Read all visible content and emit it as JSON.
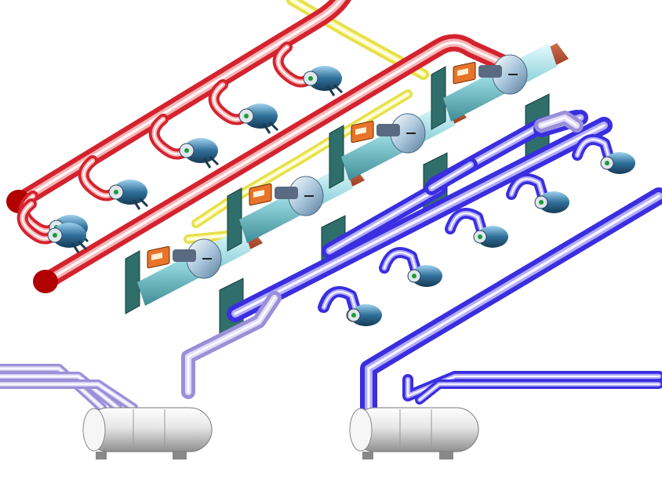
{
  "diagram": {
    "kind": "piping-scada-schematic",
    "colors": {
      "hot_supply": "#d4232e",
      "hot_light": "#ffd0d0",
      "cold_supply": "#3a2ee0",
      "cold_light": "#c9c4ff",
      "return_lavender": "#9a90d8",
      "return_light": "#eeeaff",
      "auxiliary_yellow": "#e6e04a",
      "frame_teal": "#2f6e6a",
      "shell_cyan": "#8fd2da",
      "condenser_brown": "#8a2a10",
      "panel_orange": "#e8742a",
      "pump_blue": "#2f6f9a",
      "tank_gray": "#c8c8c8",
      "pipe_end_dark_red": "#b00000"
    },
    "chiller_count": 4,
    "hot_side_pump_count": 6,
    "cold_side_pump_count": 6,
    "storage_tank_count": 2
  }
}
